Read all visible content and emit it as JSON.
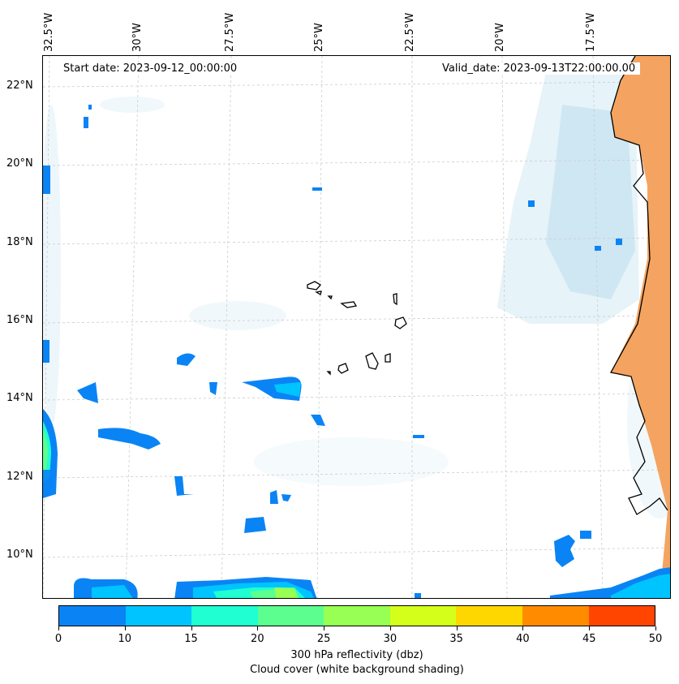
{
  "map": {
    "start_date": "Start date: 2023-09-12_00:00:00",
    "valid_date": "Valid_date: 2023-09-13T22:00:00.00",
    "lat_labels": [
      "22°N",
      "20°N",
      "18°N",
      "16°N",
      "14°N",
      "12°N",
      "10°N"
    ],
    "lon_labels": [
      "32.5°W",
      "30°W",
      "27.5°W",
      "25°W",
      "22.5°W",
      "20°W",
      "17.5°W"
    ],
    "land_color": "#f4a460",
    "reflectivity_base_color": "#0a84f5"
  },
  "colorbar": {
    "ticks": [
      "0",
      "10",
      "15",
      "20",
      "25",
      "30",
      "35",
      "40",
      "45",
      "50"
    ],
    "colors": [
      "#0a84f5",
      "#00c4ff",
      "#1fffd2",
      "#5cff8f",
      "#98ff54",
      "#d4ff1a",
      "#ffd700",
      "#ff8c00",
      "#ff4500"
    ],
    "label": "300 hPa reflectivity (dbz)",
    "sublabel": "Cloud cover (white background shading)"
  }
}
